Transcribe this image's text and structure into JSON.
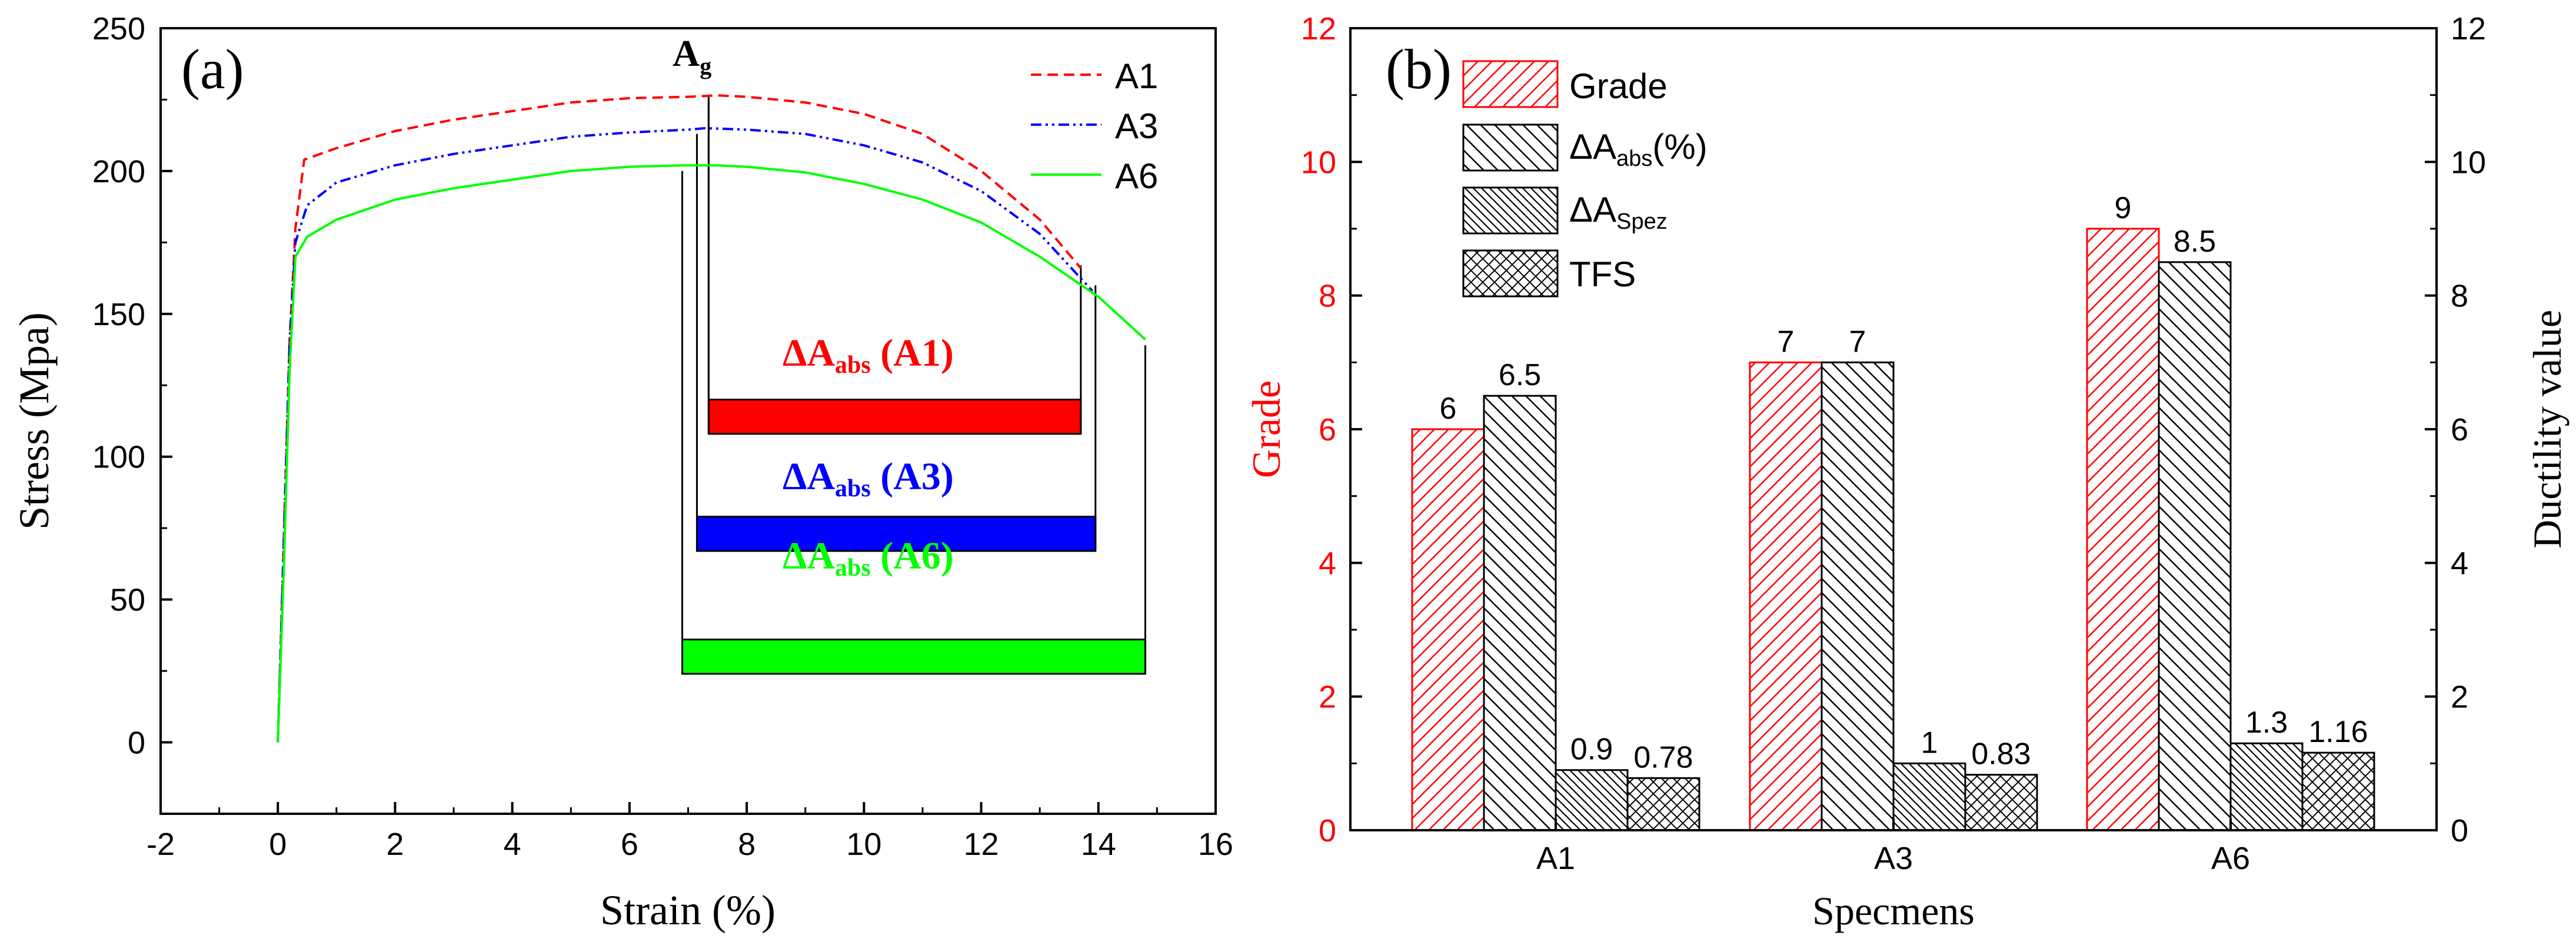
{
  "chart_data": [
    {
      "panel_label": "(a)",
      "type": "line",
      "title": "",
      "xlabel": "Strain (%)",
      "ylabel": "Stress (Mpa)",
      "xlim": [
        -2,
        16
      ],
      "ylim": [
        -25,
        250
      ],
      "xticks": [
        -2,
        0,
        2,
        4,
        6,
        8,
        10,
        12,
        14,
        16
      ],
      "yticks": [
        0,
        50,
        100,
        150,
        200,
        250
      ],
      "xtick_labels": [
        "-2",
        "0",
        "2",
        "4",
        "6",
        "8",
        "10",
        "12",
        "14",
        "16"
      ],
      "ytick_labels": [
        "0",
        "50",
        "100",
        "150",
        "200",
        "250"
      ],
      "legend_position": "top-right",
      "series": [
        {
          "name": "A1",
          "color": "#ff0000",
          "style": "dashed",
          "x": [
            0,
            0.1,
            0.2,
            0.3,
            0.45,
            1,
            2,
            3,
            4,
            5,
            6,
            7,
            7.5,
            8,
            9,
            10,
            11,
            12,
            13,
            13.7
          ],
          "y": [
            0,
            70,
            140,
            180,
            204,
            208,
            214,
            218,
            221,
            224,
            225.5,
            226,
            226.5,
            226,
            224,
            220,
            213,
            200,
            183,
            166
          ]
        },
        {
          "name": "A3",
          "color": "#0000ff",
          "style": "dash-dot-dot",
          "x": [
            0,
            0.1,
            0.2,
            0.3,
            0.5,
            1,
            2,
            3,
            4,
            5,
            6,
            7,
            7.3,
            8,
            9,
            10,
            11,
            12,
            13,
            13.9
          ],
          "y": [
            0,
            70,
            140,
            175,
            188,
            196,
            202,
            206,
            209,
            212,
            213.5,
            214.5,
            215,
            214.5,
            213,
            209,
            203,
            193,
            178,
            158
          ]
        },
        {
          "name": "A6",
          "color": "#00ff00",
          "style": "solid",
          "x": [
            0,
            0.1,
            0.2,
            0.3,
            0.5,
            1,
            2,
            3,
            4,
            5,
            6,
            6.9,
            7.5,
            8,
            9,
            10,
            11,
            12,
            13,
            14,
            14.8
          ],
          "y": [
            0,
            60,
            130,
            170,
            177,
            183,
            190,
            194,
            197,
            200,
            201.5,
            202,
            202,
            201.5,
            199.5,
            195.5,
            190,
            182,
            170,
            156,
            141
          ]
        }
      ],
      "annotations": {
        "ag_label": "A",
        "ag_sub": "g",
        "bars": [
          {
            "label": "ΔA",
            "sub": "abs",
            "suffix": " (A1)",
            "color": "#ff0000",
            "x_start": 7.35,
            "x_end": 13.7,
            "y_low": 108,
            "y_high": 120,
            "bracket_left_top": 225,
            "bracket_right_top": 167
          },
          {
            "label": "ΔA",
            "sub": "abs",
            "suffix": " (A3)",
            "color": "#0000ff",
            "x_start": 7.15,
            "x_end": 13.95,
            "y_low": 67,
            "y_high": 79,
            "bracket_left_top": 213,
            "bracket_right_top": 160
          },
          {
            "label": "ΔA",
            "sub": "abs",
            "suffix": " (A6)",
            "color": "#00ff00",
            "x_start": 6.9,
            "x_end": 14.8,
            "y_low": 24,
            "y_high": 36,
            "bracket_left_top": 200,
            "bracket_right_top": 139
          }
        ]
      }
    },
    {
      "panel_label": "(b)",
      "type": "bar",
      "title": "",
      "xlabel": "Specmens",
      "ylabel": "Grade",
      "ylabel_right": "Ductility value",
      "ylim": [
        0,
        12
      ],
      "ylim_right": [
        0,
        12
      ],
      "yticks": [
        0,
        2,
        4,
        6,
        8,
        10,
        12
      ],
      "ytick_labels": [
        "0",
        "2",
        "4",
        "6",
        "8",
        "10",
        "12"
      ],
      "ytick_labels_right": [
        "0",
        "2",
        "4",
        "6",
        "8",
        "10",
        "12"
      ],
      "categories": [
        "A1",
        "A3",
        "A6"
      ],
      "legend_position": "top-left",
      "series": [
        {
          "name": "Grade",
          "name_sub": "",
          "name_suffix": "",
          "color": "#ff0000",
          "pattern": "diag-up",
          "values": [
            6,
            7,
            9
          ],
          "value_labels": [
            "6",
            "7",
            "9"
          ]
        },
        {
          "name": "ΔA",
          "name_sub": "abs",
          "name_suffix": "(%)",
          "color": "#000000",
          "pattern": "diag-down",
          "values": [
            6.5,
            7,
            8.5
          ],
          "value_labels": [
            "6.5",
            "7",
            "8.5"
          ]
        },
        {
          "name": "ΔA",
          "name_sub": "Spez",
          "name_suffix": "",
          "color": "#000000",
          "pattern": "diag-down-dense",
          "values": [
            0.9,
            1,
            1.3
          ],
          "value_labels": [
            "0.9",
            "1",
            "1.3"
          ]
        },
        {
          "name": "TFS",
          "name_sub": "",
          "name_suffix": "",
          "color": "#000000",
          "pattern": "cross",
          "values": [
            0.78,
            0.83,
            1.16
          ],
          "value_labels": [
            "0.78",
            "0.83",
            "1.16"
          ]
        }
      ]
    }
  ]
}
